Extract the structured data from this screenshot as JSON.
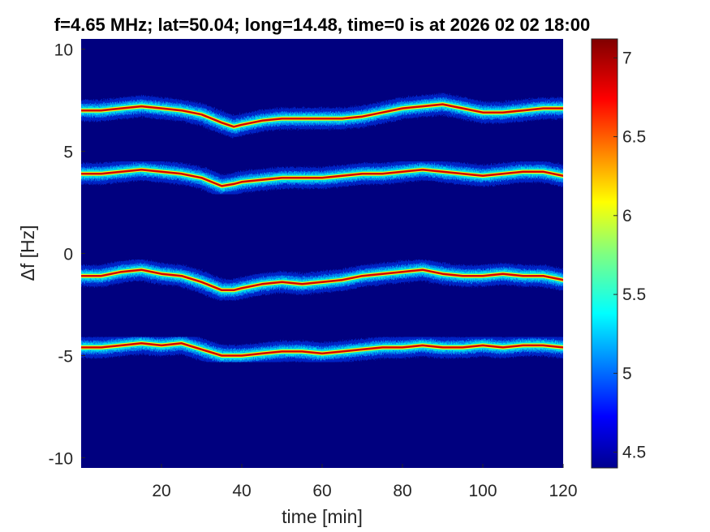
{
  "chart_data": {
    "type": "heatmap",
    "title": "f=4.65 MHz;  lat=50.04; long=14.48, time=0 is at 2026 02 02 18:00",
    "xlabel": "time [min]",
    "ylabel": "Δf [Hz]",
    "xlim": [
      0,
      120
    ],
    "ylim": [
      -10.5,
      10.5
    ],
    "xticks": [
      20,
      40,
      60,
      80,
      100,
      120
    ],
    "xtick_labels": [
      "20",
      "40",
      "60",
      "80",
      "100",
      "120"
    ],
    "yticks": [
      10,
      5,
      0,
      -5,
      -10
    ],
    "ytick_labels": [
      "10",
      "5",
      "0",
      "-5",
      "-10"
    ],
    "grid": false,
    "background_color": "#00007f",
    "colormap": "jet",
    "colorbar": {
      "range": [
        4.4,
        7.12
      ],
      "ticks": [
        7,
        6.5,
        6,
        5.5,
        5,
        4.5
      ],
      "tick_labels": [
        "7",
        "6.5",
        "6",
        "5.5",
        "5",
        "4.5"
      ]
    },
    "traces": [
      {
        "name": "",
        "x": [
          0,
          5,
          10,
          15,
          20,
          25,
          30,
          35,
          38,
          40,
          45,
          50,
          55,
          60,
          65,
          70,
          75,
          80,
          85,
          90,
          95,
          100,
          105,
          110,
          115,
          120
        ],
        "y": [
          7.0,
          7.0,
          7.1,
          7.2,
          7.1,
          7.0,
          6.8,
          6.4,
          6.2,
          6.3,
          6.5,
          6.6,
          6.6,
          6.6,
          6.6,
          6.7,
          6.9,
          7.1,
          7.2,
          7.3,
          7.1,
          6.9,
          6.9,
          7.0,
          7.1,
          7.1
        ]
      },
      {
        "name": "",
        "x": [
          0,
          5,
          10,
          15,
          20,
          25,
          30,
          35,
          38,
          40,
          45,
          50,
          55,
          60,
          65,
          70,
          75,
          80,
          85,
          90,
          95,
          100,
          105,
          110,
          115,
          120
        ],
        "y": [
          3.9,
          3.9,
          4.0,
          4.1,
          4.0,
          3.9,
          3.7,
          3.3,
          3.4,
          3.5,
          3.6,
          3.7,
          3.7,
          3.7,
          3.8,
          3.9,
          3.9,
          4.0,
          4.1,
          4.0,
          3.9,
          3.8,
          3.9,
          4.0,
          4.0,
          3.8
        ]
      },
      {
        "name": "",
        "x": [
          0,
          5,
          10,
          15,
          20,
          25,
          30,
          35,
          38,
          40,
          45,
          50,
          55,
          60,
          65,
          70,
          75,
          80,
          85,
          90,
          95,
          100,
          105,
          110,
          115,
          120
        ],
        "y": [
          -1.1,
          -1.1,
          -0.9,
          -0.8,
          -1.0,
          -1.1,
          -1.4,
          -1.8,
          -1.8,
          -1.7,
          -1.5,
          -1.4,
          -1.5,
          -1.4,
          -1.3,
          -1.1,
          -1.0,
          -0.9,
          -0.8,
          -1.0,
          -1.1,
          -1.1,
          -1.0,
          -1.1,
          -1.1,
          -1.3
        ]
      },
      {
        "name": "",
        "x": [
          0,
          5,
          10,
          15,
          20,
          25,
          30,
          35,
          38,
          40,
          45,
          50,
          55,
          60,
          65,
          70,
          75,
          80,
          85,
          90,
          95,
          100,
          105,
          110,
          115,
          120
        ],
        "y": [
          -4.6,
          -4.6,
          -4.5,
          -4.4,
          -4.5,
          -4.4,
          -4.7,
          -5.0,
          -5.0,
          -5.0,
          -4.9,
          -4.8,
          -4.8,
          -4.9,
          -4.8,
          -4.7,
          -4.6,
          -4.6,
          -4.5,
          -4.6,
          -4.6,
          -4.5,
          -4.6,
          -4.5,
          -4.5,
          -4.6
        ]
      }
    ]
  }
}
